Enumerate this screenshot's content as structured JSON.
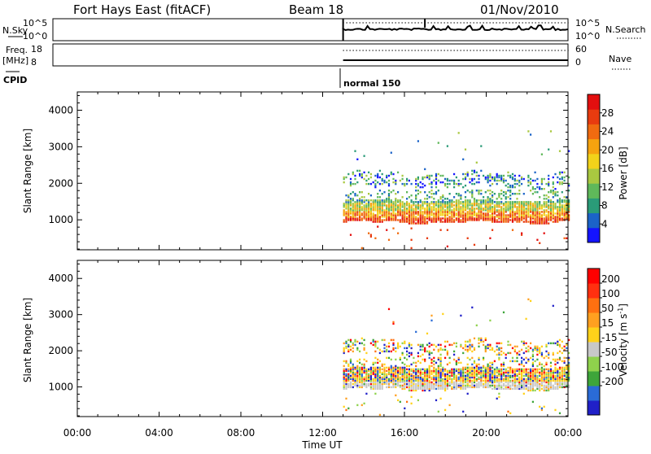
{
  "header": {
    "station": "Fort Hays East (fitACF)",
    "beam": "Beam 18",
    "date": "01/Nov/2010"
  },
  "info_panels": {
    "nsky_label": "N.Sky",
    "nsky_ticks": [
      "10^5",
      "10^0"
    ],
    "nsearch_label": "N.Search",
    "freq_label_top": "Freq.",
    "freq_label_bottom": "[MHz]",
    "freq_ticks": [
      "18",
      "8"
    ],
    "nave_label": "Nave",
    "nave_ticks": [
      "60",
      "0"
    ],
    "cpid_label": "CPID",
    "cpid_value": "normal 150"
  },
  "chart_data": [
    {
      "type": "heatmap",
      "title": "",
      "ylabel": "Slant Range [km]",
      "xlabel": "",
      "xlim": [
        0,
        24
      ],
      "ylim": [
        180,
        4500
      ],
      "y_ticks": [
        1000,
        2000,
        3000,
        4000
      ],
      "colorbar": {
        "label": "Power [dB]",
        "tick_labels": [
          "4",
          "8",
          "12",
          "16",
          "20",
          "24",
          "28"
        ],
        "colors": [
          "#1414ff",
          "#1b63c8",
          "#2a9b78",
          "#5fb85a",
          "#a9c840",
          "#f2d21a",
          "#f6a30f",
          "#f06b10",
          "#e83b0f",
          "#e30f0f"
        ]
      },
      "data_start_hour": 13.0,
      "echo_bands": [
        {
          "range_km": [
            900,
            1500
          ],
          "power_db": [
            14,
            30
          ]
        },
        {
          "range_km": [
            1500,
            1800
          ],
          "power_db": [
            6,
            16
          ]
        },
        {
          "range_km": [
            1800,
            2450
          ],
          "power_db": [
            4,
            14
          ]
        }
      ]
    },
    {
      "type": "heatmap",
      "title": "",
      "ylabel": "Slant Range [km]",
      "xlabel": "Time UT",
      "xlim": [
        0,
        24
      ],
      "ylim": [
        180,
        4500
      ],
      "y_ticks": [
        1000,
        2000,
        3000,
        4000
      ],
      "x_tick_labels": [
        "00:00",
        "04:00",
        "08:00",
        "12:00",
        "16:00",
        "20:00",
        "00:00"
      ],
      "colorbar": {
        "label_text": "Velocity [m s",
        "label_sup": "-1",
        "label_end": "]",
        "tick_labels": [
          "200",
          "100",
          "50",
          "15",
          "-15",
          "-50",
          "-100",
          "-200"
        ],
        "colors": [
          "#2020c8",
          "#2a6bd6",
          "#3ea53a",
          "#8fd24c",
          "#c8c8c8",
          "#ffd21a",
          "#ffa020",
          "#ff7010",
          "#ff3010",
          "#ff0000"
        ]
      },
      "data_start_hour": 13.0,
      "ground_scatter_range_km": [
        900,
        1100
      ]
    }
  ]
}
